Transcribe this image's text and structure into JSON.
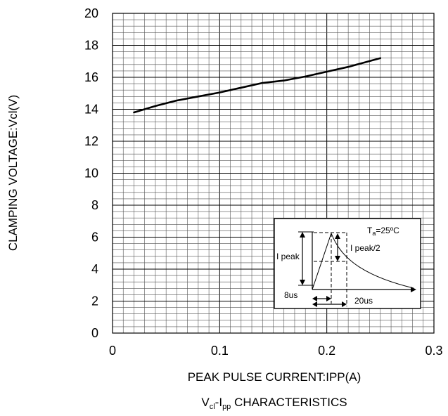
{
  "chart_data": {
    "type": "line",
    "xlabel": "PEAK PULSE CURRENT:IPP(A)",
    "ylabel": "CLAMPING VOLTAGE:Vcl(V)",
    "caption": {
      "v": "V",
      "v_sub": "cl",
      "dash": "-I",
      "i_sub": "pp",
      "rest": " CHARACTERISTICS"
    },
    "xlim": [
      0,
      0.3
    ],
    "ylim": [
      0,
      20
    ],
    "xticks": [
      0,
      0.1,
      0.2,
      0.3
    ],
    "xtick_labels": [
      "0",
      "0.1",
      "0.2",
      "0.3"
    ],
    "yticks": [
      0,
      2,
      4,
      6,
      8,
      10,
      12,
      14,
      16,
      18,
      20
    ],
    "ytick_labels": [
      "0",
      "2",
      "4",
      "6",
      "8",
      "10",
      "12",
      "14",
      "16",
      "18",
      "20"
    ],
    "grid": "on",
    "series": [
      {
        "x": [
          0.02,
          0.04,
          0.06,
          0.08,
          0.1,
          0.12,
          0.14,
          0.16,
          0.18,
          0.2,
          0.22,
          0.25
        ],
        "y": [
          13.8,
          14.2,
          14.55,
          14.8,
          15.05,
          15.35,
          15.65,
          15.8,
          16.05,
          16.35,
          16.65,
          17.2
        ]
      }
    ]
  },
  "inset": {
    "temp_T": "T",
    "temp_sub": "a",
    "temp_rest": "=25ºC",
    "i_peak": "I peak",
    "i_peak_half": "I peak/2",
    "t_rise": "8us",
    "t_half": "20us"
  }
}
